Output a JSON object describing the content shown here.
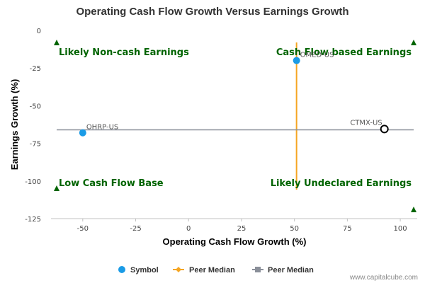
{
  "chart_data": {
    "type": "scatter",
    "title": "Operating Cash Flow Growth Versus Earnings Growth",
    "xlabel": "Operating Cash Flow Growth (%)",
    "ylabel": "Earnings Growth (%)",
    "xlim": [
      -65,
      108
    ],
    "ylim": [
      -125,
      0
    ],
    "x_ticks": [
      -50,
      -25,
      0,
      25,
      50,
      75,
      100
    ],
    "y_ticks": [
      0,
      -25,
      -50,
      -75,
      -100,
      -125
    ],
    "grid": false,
    "points": [
      {
        "label": "OMED-US",
        "x": 51,
        "y": -20,
        "style": "filled"
      },
      {
        "label": "OHRP-US",
        "x": -50,
        "y": -68,
        "style": "filled"
      },
      {
        "label": "CTMX-US",
        "x": 92.5,
        "y": -65.5,
        "style": "hollow"
      }
    ],
    "peer_median_x": 51,
    "peer_median_y": -66,
    "quadrant_labels": {
      "top_left": "Likely Non-cash Earnings",
      "top_right": "Cash Flow based Earnings",
      "bottom_left": "Low Cash Flow Base",
      "bottom_right": "Likely Undeclared Earnings"
    },
    "legend": {
      "placement": "bottom",
      "items": [
        {
          "label": "Symbol",
          "marker": "circle",
          "color": "#1a9be6"
        },
        {
          "label": "Peer Median",
          "marker": "diamond-line",
          "color": "#f5a623"
        },
        {
          "label": "Peer Median",
          "marker": "square-line",
          "color": "#8a8f99"
        }
      ]
    },
    "colors": {
      "symbol": "#1a9be6",
      "peer_median_vertical": "#f5a623",
      "peer_median_horizontal": "#8a8f99",
      "quadrant_text": "#006400",
      "highlight_outline": "#000000"
    }
  },
  "credit": "www.capitalcube.com"
}
